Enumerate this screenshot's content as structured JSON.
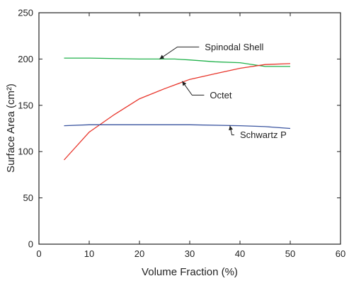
{
  "chart_data": {
    "type": "line",
    "xlabel": "Volume Fraction (%)",
    "ylabel": "Surface Area (cm²)",
    "xlim": [
      0,
      60
    ],
    "ylim": [
      0,
      250
    ],
    "xticks": [
      "0",
      "10",
      "20",
      "30",
      "40",
      "50",
      "60"
    ],
    "yticks": [
      "0",
      "50",
      "100",
      "150",
      "200",
      "250"
    ],
    "grid": false,
    "legend": "none",
    "series": [
      {
        "name": "Spinodal Shell",
        "color": "#22b24c",
        "x": [
          5,
          10,
          20,
          27,
          30,
          35,
          40,
          45,
          50
        ],
        "y": [
          201,
          201,
          200,
          200,
          199,
          197,
          196,
          192,
          192
        ]
      },
      {
        "name": "Octet",
        "color": "#e8352b",
        "x": [
          5,
          10,
          15,
          20,
          25,
          30,
          35,
          40,
          45,
          50
        ],
        "y": [
          91,
          121,
          140,
          157,
          168,
          178,
          184,
          190,
          194,
          195
        ]
      },
      {
        "name": "Schwartz P",
        "color": "#3b55a0",
        "x": [
          5,
          10,
          20,
          30,
          40,
          45,
          50
        ],
        "y": [
          128,
          129,
          129,
          129,
          128,
          127,
          125
        ]
      }
    ],
    "annotations": [
      {
        "text": "Spinodal Shell",
        "series": 0,
        "point_x": 24,
        "point_y": 200,
        "label_x": 33,
        "label_y": 213
      },
      {
        "text": "Octet",
        "series": 1,
        "point_x": 28.5,
        "point_y": 176,
        "label_x": 34,
        "label_y": 161
      },
      {
        "text": "Schwartz P",
        "series": 2,
        "point_x": 38,
        "point_y": 128,
        "label_x": 40,
        "label_y": 118
      }
    ]
  }
}
